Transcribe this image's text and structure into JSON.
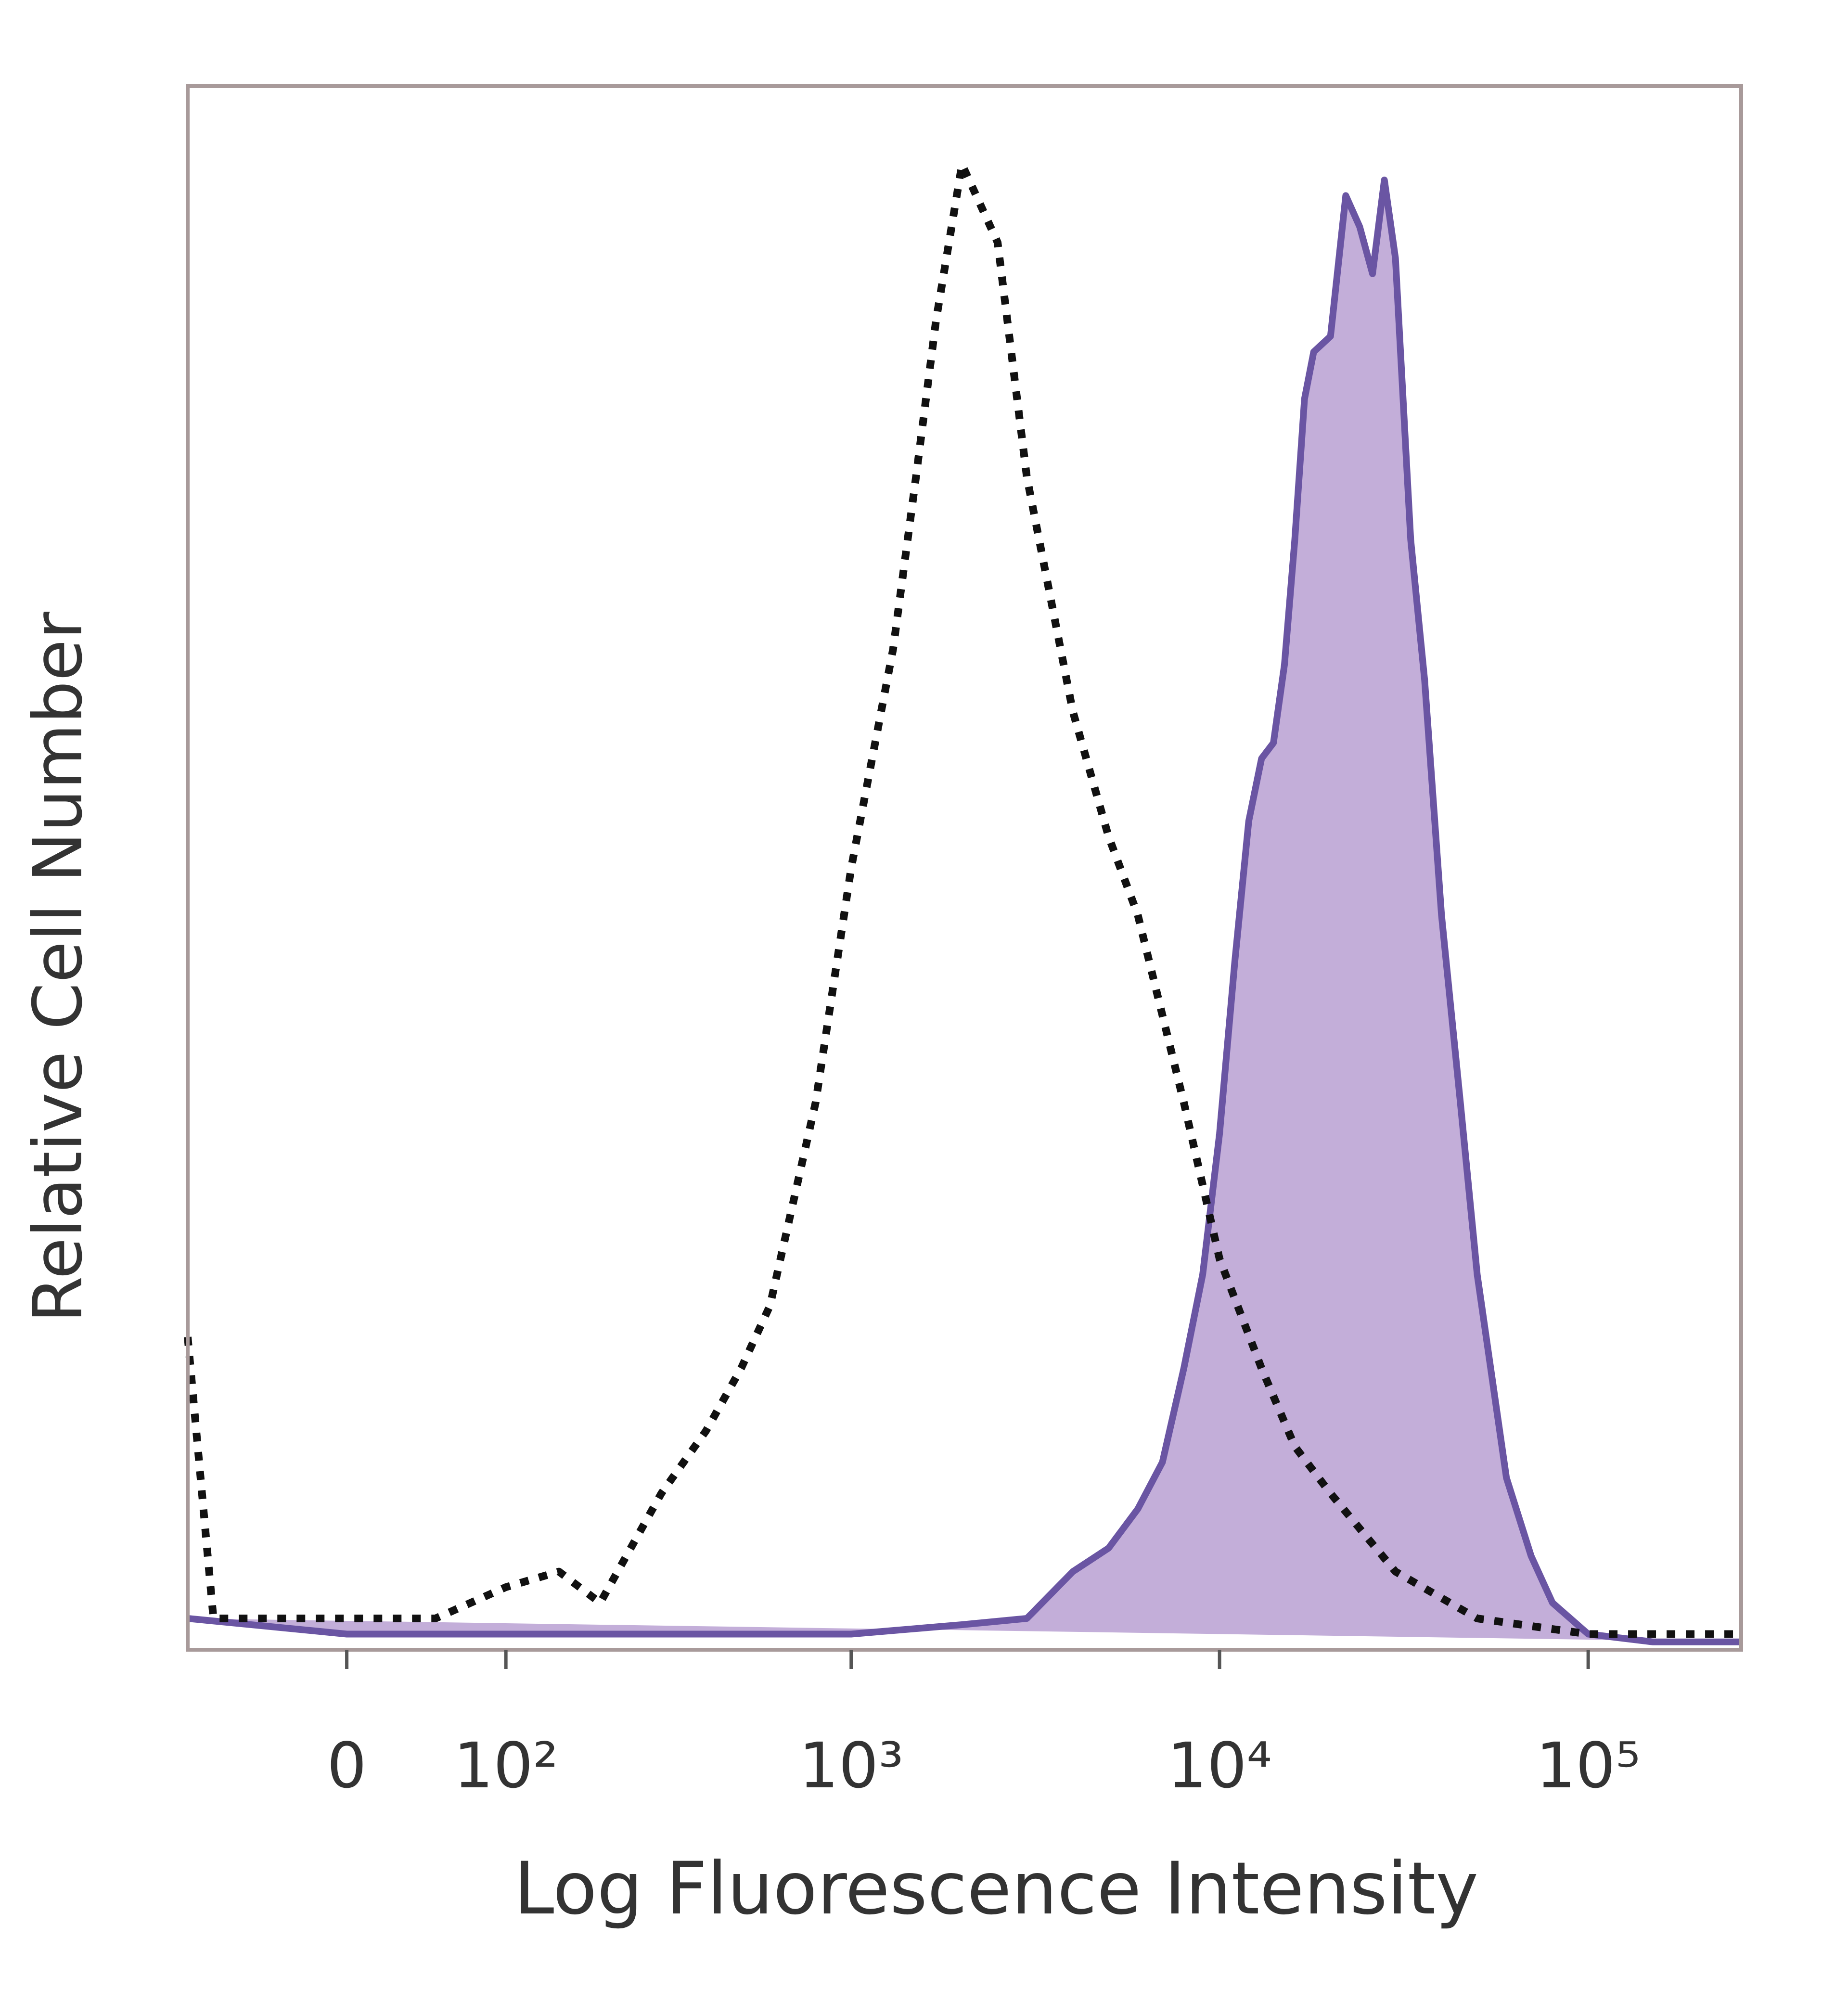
{
  "chart_data": {
    "type": "histogram-overlay",
    "xlabel": "Log Fluorescence Intensity",
    "ylabel": "Relative Cell Number",
    "xscale": "biexponential",
    "xlim": [
      -100,
      260000
    ],
    "ylim": [
      0,
      100
    ],
    "xticks": [
      0,
      {
        "value": 100,
        "label": "10²"
      },
      {
        "value": 1000,
        "label": "10³"
      },
      {
        "value": 10000,
        "label": "10⁴"
      },
      {
        "value": 100000,
        "label": "10⁵"
      }
    ],
    "series": [
      {
        "color": "#6a55a3",
        "fill": "#b9a0d2",
        "style": "filled",
        "x": [
          -100,
          0,
          100,
          1000,
          2000,
          3000,
          4000,
          5000,
          6000,
          7000,
          8000,
          9000,
          10000,
          11000,
          12000,
          13000,
          14000,
          15000,
          16000,
          17000,
          18000,
          20000,
          22000,
          24000,
          26000,
          28000,
          30000,
          33000,
          36000,
          40000,
          45000,
          50000,
          60000,
          70000,
          80000,
          100000,
          150000,
          260000
        ],
        "values": [
          2,
          1,
          1,
          1,
          1.6,
          2,
          5,
          6.5,
          9,
          12,
          18,
          24,
          33,
          44,
          53,
          57,
          58,
          63,
          71,
          80,
          83,
          84,
          93,
          91,
          88,
          94,
          89,
          71,
          62,
          47,
          35,
          24,
          11,
          6,
          3,
          1,
          0.5,
          0.5
        ]
      },
      {
        "color": "#111111",
        "style": "dotted",
        "x": [
          -100,
          -80,
          0,
          50,
          100,
          150,
          200,
          300,
          400,
          500,
          600,
          800,
          1000,
          1300,
          1500,
          1700,
          2000,
          2500,
          3000,
          4000,
          5000,
          6000,
          8000,
          10000,
          13000,
          16000,
          20000,
          30000,
          50000,
          100000,
          260000
        ],
        "values": [
          20,
          2,
          2,
          2,
          4,
          5,
          3,
          10,
          14,
          18,
          22,
          35,
          50,
          64,
          75,
          85,
          95,
          90,
          75,
          60,
          52,
          47,
          35,
          25,
          18,
          13,
          10,
          5,
          2,
          1,
          1
        ]
      }
    ]
  }
}
